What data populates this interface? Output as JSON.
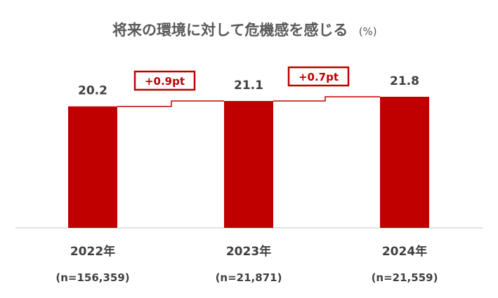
{
  "chart_data": {
    "type": "bar",
    "title": "将来の環境に対して危機感を感じる",
    "unit": "(%)",
    "categories": [
      "2022年",
      "2023年",
      "2024年"
    ],
    "sample_sizes": [
      "(n=156,359)",
      "(n=21,871)",
      "(n=21,559)"
    ],
    "values": [
      20.2,
      21.1,
      21.8
    ],
    "value_labels": [
      "20.2",
      "21.1",
      "21.8"
    ],
    "changes": [
      {
        "from": "2022年",
        "to": "2023年",
        "label": "+0.9pt"
      },
      {
        "from": "2023年",
        "to": "2024年",
        "label": "+0.7pt"
      }
    ],
    "ylim": [
      0,
      21.8
    ],
    "grid": false,
    "legend": "none"
  },
  "colors": {
    "bar": "#c00000",
    "connector": "#c00000",
    "baseline": "#d9d9d9",
    "text": "#404040",
    "title": "#595959"
  }
}
